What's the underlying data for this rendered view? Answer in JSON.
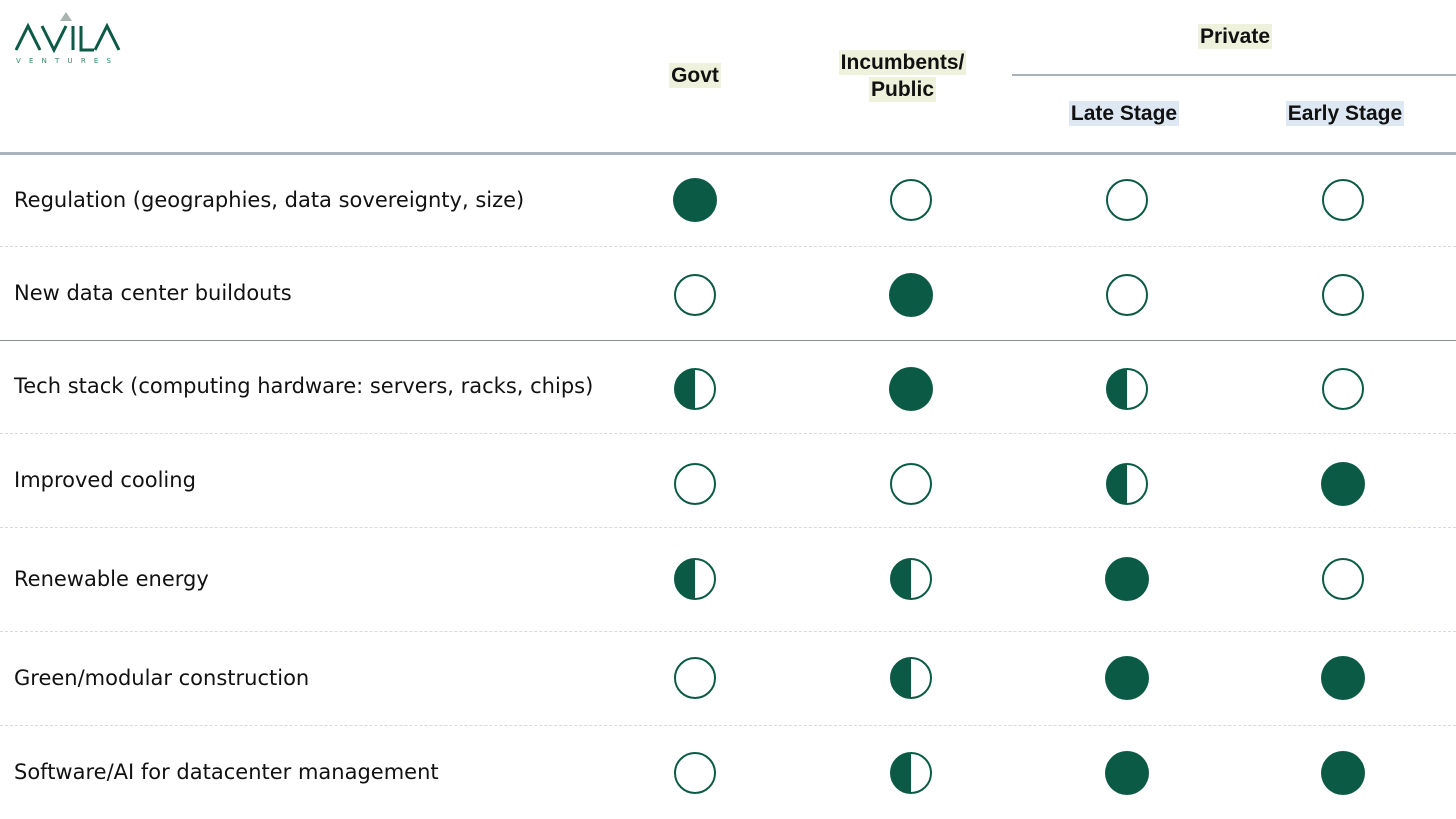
{
  "brand": {
    "name": "AVILA",
    "sub": "VENTURES",
    "color": "#0b5a45",
    "light": "#a8b4b0"
  },
  "headers": {
    "govt": "Govt",
    "incumbents_line1": "Incumbents/",
    "incumbents_line2": "Public",
    "private": "Private",
    "late_stage": "Late Stage",
    "early_stage": "Early Stage"
  },
  "rating_legend": {
    "full": "filled",
    "half": "half-filled",
    "empty": "outline"
  },
  "rows": [
    {
      "label": "Regulation (geographies, data sovereignty, size)",
      "ratings": [
        "full",
        "empty",
        "empty",
        "empty"
      ]
    },
    {
      "label": "New data center buildouts",
      "ratings": [
        "empty",
        "full",
        "empty",
        "empty"
      ]
    },
    {
      "label": "Tech stack (computing hardware: servers, racks, chips)",
      "ratings": [
        "half",
        "full",
        "half",
        "empty"
      ]
    },
    {
      "label": "Improved cooling",
      "ratings": [
        "empty",
        "empty",
        "half",
        "full"
      ]
    },
    {
      "label": "Renewable energy",
      "ratings": [
        "half",
        "half",
        "full",
        "empty"
      ]
    },
    {
      "label": "Green/modular construction",
      "ratings": [
        "empty",
        "half",
        "full",
        "full"
      ]
    },
    {
      "label": "Software/AI for datacenter management",
      "ratings": [
        "empty",
        "half",
        "full",
        "full"
      ]
    }
  ]
}
